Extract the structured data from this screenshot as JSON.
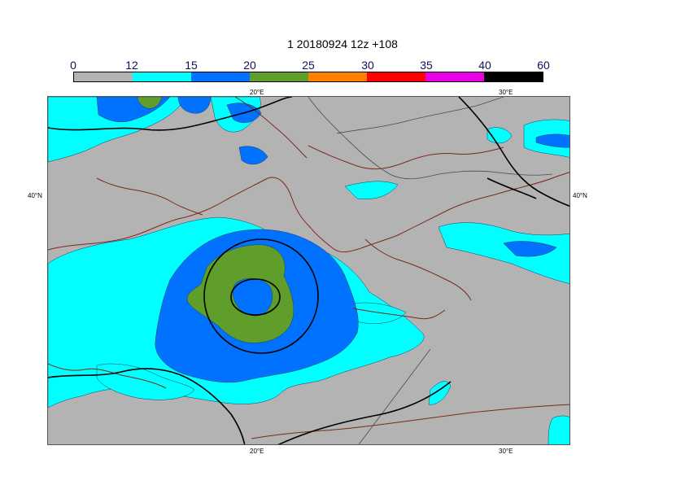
{
  "title": "1 20180924 12z +108",
  "colorbar": {
    "ticks": [
      "0",
      "12",
      "15",
      "20",
      "25",
      "30",
      "35",
      "40",
      "60"
    ],
    "colors": [
      "#b3b3b3",
      "#00ffff",
      "#0072ff",
      "#5f9e2a",
      "#ff8000",
      "#ff0000",
      "#e600e6",
      "#000000"
    ]
  },
  "map": {
    "lon_labels": [
      "20°E",
      "30°E"
    ],
    "lat_labels": [
      "40°N"
    ],
    "land_color": "#b3b3b3",
    "coast_color": "#7a2a1a",
    "border_color": "#4a4a4a",
    "contour_color": "#000000"
  }
}
